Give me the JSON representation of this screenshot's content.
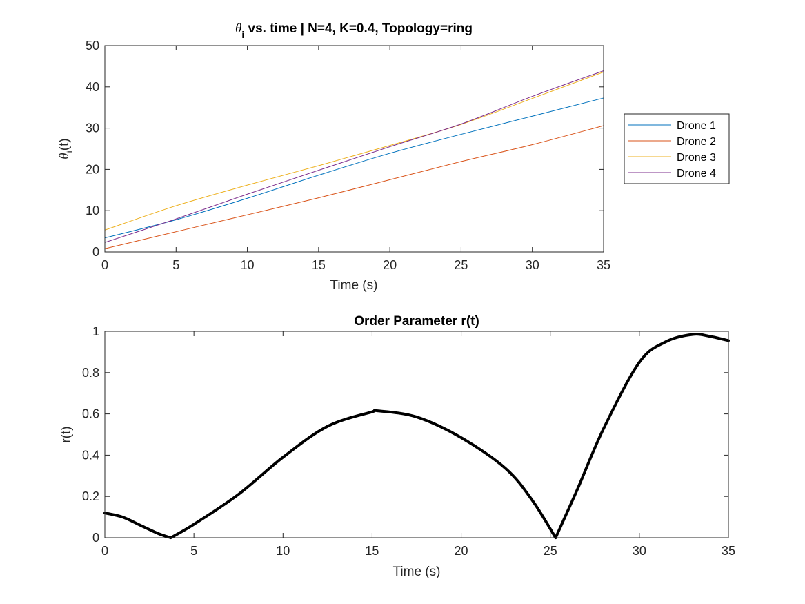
{
  "chart_data": [
    {
      "type": "line",
      "title_prefix": "θ",
      "title_subscript": "i",
      "title_rest": " vs. time | N=4, K=0.4, Topology=ring",
      "xlabel": "Time (s)",
      "ylabel_prefix": "θ",
      "ylabel_subscript": "i",
      "ylabel_rest": "(t)",
      "xlim": [
        0,
        35
      ],
      "ylim": [
        0,
        50
      ],
      "xticks": [
        "0",
        "5",
        "10",
        "15",
        "20",
        "25",
        "30",
        "35"
      ],
      "yticks": [
        "0",
        "10",
        "20",
        "30",
        "40",
        "50"
      ],
      "grid": false,
      "legend_position": "outside-right",
      "series": [
        {
          "name": "Drone 1",
          "color": "#0072BD",
          "x": [
            0,
            5,
            10,
            15,
            20,
            25,
            30,
            35
          ],
          "y": [
            3.4,
            7.8,
            13.0,
            18.6,
            23.9,
            28.5,
            32.9,
            37.3
          ]
        },
        {
          "name": "Drone 2",
          "color": "#D95319",
          "x": [
            0,
            5,
            10,
            15,
            20,
            25,
            30,
            35
          ],
          "y": [
            0.8,
            4.9,
            9.0,
            13.1,
            17.5,
            21.9,
            26.0,
            30.6
          ]
        },
        {
          "name": "Drone 3",
          "color": "#EDB120",
          "x": [
            0,
            5,
            10,
            15,
            20,
            25,
            30,
            35
          ],
          "y": [
            5.3,
            11.2,
            16.2,
            20.9,
            25.8,
            30.9,
            37.2,
            43.6
          ]
        },
        {
          "name": "Drone 4",
          "color": "#7E2F8E",
          "x": [
            0,
            5,
            10,
            15,
            20,
            25,
            30,
            35
          ],
          "y": [
            2.3,
            8.0,
            14.0,
            19.8,
            25.5,
            31.0,
            37.7,
            43.9
          ]
        }
      ]
    },
    {
      "type": "line",
      "title": "Order Parameter r(t)",
      "xlabel": "Time (s)",
      "ylabel": "r(t)",
      "xlim": [
        0,
        35
      ],
      "ylim": [
        0,
        1
      ],
      "xticks": [
        "0",
        "5",
        "10",
        "15",
        "20",
        "25",
        "30",
        "35"
      ],
      "yticks": [
        "0",
        "0.2",
        "0.4",
        "0.6",
        "0.8",
        "1"
      ],
      "grid": false,
      "series": [
        {
          "color": "#000000",
          "x": [
            0,
            1,
            2,
            3,
            3.7,
            5,
            7.5,
            10,
            12.5,
            15,
            15.3,
            17.5,
            20,
            22.5,
            24,
            25.3,
            26.5,
            28,
            30,
            31.5,
            33,
            34,
            35
          ],
          "y": [
            0.12,
            0.1,
            0.06,
            0.02,
            0.0,
            0.065,
            0.21,
            0.39,
            0.54,
            0.61,
            0.615,
            0.585,
            0.485,
            0.335,
            0.18,
            0.0,
            0.23,
            0.53,
            0.85,
            0.95,
            0.985,
            0.975,
            0.955
          ]
        }
      ]
    }
  ]
}
